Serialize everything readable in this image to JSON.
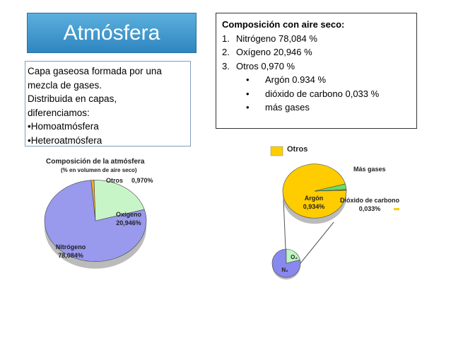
{
  "title": "Atmósfera",
  "description": {
    "lines": [
      "Capa gaseosa formada por una",
      "mezcla de gases.",
      "Distribuida en capas,",
      "diferenciamos:",
      "•Homoatmósfera",
      "•Heteroatmósfera"
    ]
  },
  "composition": {
    "heading": "Composición con aire seco:",
    "items": [
      {
        "marker": "1.",
        "text": "Nitrógeno 78,084 %"
      },
      {
        "marker": "2.",
        "text": "Oxígeno 20,946 %"
      },
      {
        "marker": "3.",
        "text": "Otros 0,970 %"
      }
    ],
    "subitems": [
      "Argón 0.934 %",
      "dióxido de carbono 0,033 %",
      "más gases"
    ]
  },
  "chart_data": [
    {
      "type": "pie",
      "title": "Composición de la atmósfera",
      "subtitle": "(% en volumen de aire seco)",
      "categories": [
        "Otros",
        "Oxígeno",
        "Nitrógeno"
      ],
      "values": [
        0.97,
        20.946,
        78.084
      ],
      "value_labels": [
        "0,970%",
        "20,946%",
        "78,084%"
      ],
      "colors": [
        "#f5a623",
        "#c8f5c8",
        "#9999ee"
      ]
    },
    {
      "type": "pie",
      "title": "Otros",
      "categories": [
        "Argón",
        "Dióxido de carbono",
        "Más gases"
      ],
      "values": [
        0.934,
        0.033,
        0.003
      ],
      "value_labels": [
        "0,934%",
        "0,033%",
        null
      ],
      "colors": [
        "#ffcc00",
        "#66dd66",
        "#ee2222"
      ]
    },
    {
      "type": "pie",
      "categories": [
        "N₂",
        "O₂"
      ],
      "values": [
        78.084,
        20.946
      ],
      "colors": [
        "#8888ee",
        "#bff5bf"
      ]
    }
  ]
}
